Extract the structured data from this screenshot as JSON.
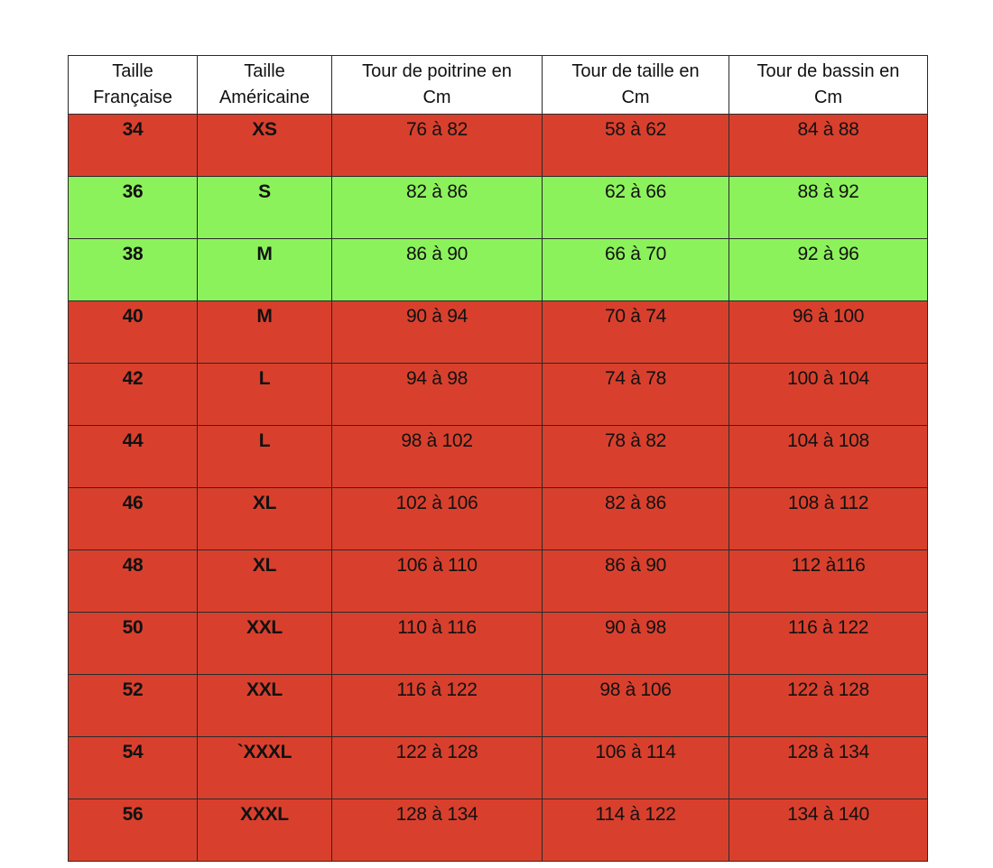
{
  "colors": {
    "unavailable_row": "#d8402d",
    "available_row": "#8cf25c",
    "header_bg": "#ffffff",
    "border": "#2a2a2a"
  },
  "table": {
    "headers": [
      [
        "Taille",
        "Française"
      ],
      [
        "Taille",
        "Américaine"
      ],
      [
        "Tour de poitrine en",
        "Cm"
      ],
      [
        "Tour de taille en",
        "Cm"
      ],
      [
        "Tour de bassin en",
        "Cm"
      ]
    ],
    "rows": [
      {
        "status": "red",
        "cells": [
          "34",
          "XS",
          "76 à 82",
          "58 à 62",
          "84 à 88"
        ]
      },
      {
        "status": "green",
        "cells": [
          "36",
          "S",
          "82 à 86",
          "62 à 66",
          "88 à 92"
        ]
      },
      {
        "status": "green",
        "cells": [
          "38",
          "M",
          "86 à 90",
          "66 à 70",
          "92 à 96"
        ]
      },
      {
        "status": "red",
        "cells": [
          "40",
          "M",
          "90 à 94",
          "70 à 74",
          "96 à 100"
        ]
      },
      {
        "status": "red",
        "cells": [
          "42",
          "L",
          "94 à 98",
          "74 à 78",
          "100 à 104"
        ]
      },
      {
        "status": "red",
        "cells": [
          "44",
          "L",
          "98 à 102",
          "78 à 82",
          "104 à 108"
        ]
      },
      {
        "status": "red",
        "cells": [
          "46",
          "XL",
          "102 à 106",
          "82 à 86",
          "108 à 112"
        ]
      },
      {
        "status": "red",
        "cells": [
          "48",
          "XL",
          "106 à 110",
          "86 à 90",
          "112 à116"
        ]
      },
      {
        "status": "red",
        "cells": [
          "50",
          "XXL",
          "110 à 116",
          "90 à 98",
          "116 à 122"
        ]
      },
      {
        "status": "red",
        "cells": [
          "52",
          "XXL",
          "116 à 122",
          "98 à 106",
          "122 à 128"
        ]
      },
      {
        "status": "red",
        "cells": [
          "54",
          "`XXXL",
          "122 à 128",
          "106 à 114",
          "128 à 134"
        ]
      },
      {
        "status": "red",
        "cells": [
          "56",
          "XXXL",
          "128 à 134",
          "114 à 122",
          "134 à 140"
        ]
      }
    ]
  }
}
